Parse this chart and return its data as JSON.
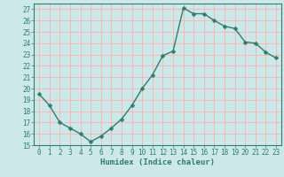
{
  "x": [
    0,
    1,
    2,
    3,
    4,
    5,
    6,
    7,
    8,
    9,
    10,
    11,
    12,
    13,
    14,
    15,
    16,
    17,
    18,
    19,
    20,
    21,
    22,
    23
  ],
  "y": [
    19.5,
    18.5,
    17.0,
    16.5,
    16.0,
    15.3,
    15.8,
    16.5,
    17.3,
    18.5,
    20.0,
    21.2,
    22.9,
    23.3,
    27.1,
    26.6,
    26.6,
    26.0,
    25.5,
    25.3,
    24.1,
    24.0,
    23.2,
    22.7
  ],
  "line_color": "#2e7d6e",
  "marker": "D",
  "markersize": 2.5,
  "linewidth": 1.0,
  "bg_color": "#cce8e8",
  "grid_color": "#f5b8b8",
  "tick_label_color": "#2e7d6e",
  "xlabel": "Humidex (Indice chaleur)",
  "xlabel_fontsize": 6.5,
  "ylim": [
    15,
    27.5
  ],
  "xlim": [
    -0.5,
    23.5
  ],
  "yticks": [
    15,
    16,
    17,
    18,
    19,
    20,
    21,
    22,
    23,
    24,
    25,
    26,
    27
  ],
  "xticks": [
    0,
    1,
    2,
    3,
    4,
    5,
    6,
    7,
    8,
    9,
    10,
    11,
    12,
    13,
    14,
    15,
    16,
    17,
    18,
    19,
    20,
    21,
    22,
    23
  ],
  "tick_fontsize": 5.5
}
